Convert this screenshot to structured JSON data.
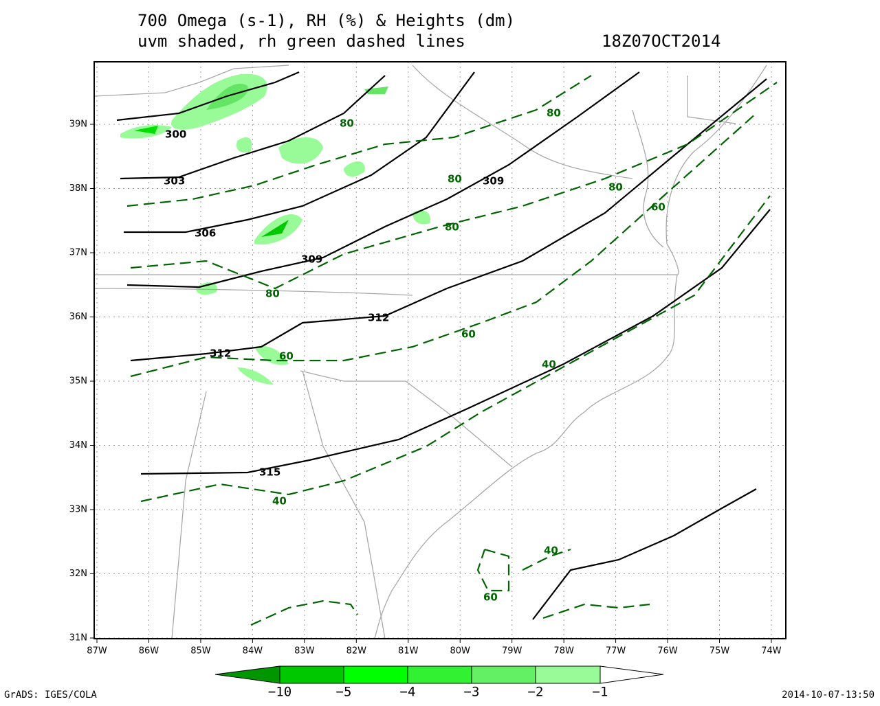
{
  "header": {
    "title_line1": "700 Omega (s-1), RH (%) & Heights (dm)",
    "title_line2": "uvm shaded, rh green dashed lines",
    "valid_time": "18Z07OCT2014"
  },
  "axes": {
    "lon_labels": [
      "87W",
      "86W",
      "85W",
      "84W",
      "83W",
      "82W",
      "81W",
      "80W",
      "79W",
      "78W",
      "77W",
      "76W",
      "75W",
      "74W"
    ],
    "lat_labels": [
      "39N",
      "38N",
      "37N",
      "36N",
      "35N",
      "34N",
      "33N",
      "32N",
      "31N"
    ]
  },
  "height_labels": [
    300,
    303,
    306,
    309,
    309,
    312,
    312,
    315
  ],
  "rh_labels": [
    80,
    80,
    80,
    80,
    60,
    80,
    80,
    60,
    40,
    60,
    40,
    40,
    60
  ],
  "colorbar": {
    "labels": [
      "−10",
      "−5",
      "−4",
      "−3",
      "−2",
      "−1"
    ]
  },
  "footer": {
    "left": "GrADS: IGES/COLA",
    "right": "2014-10-07-13:50"
  }
}
